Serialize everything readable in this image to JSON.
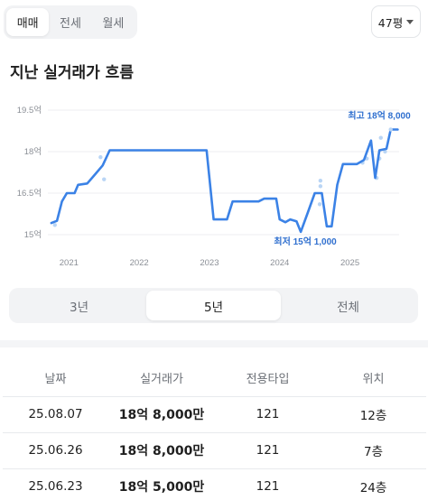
{
  "top_tabs": [
    {
      "label": "매매",
      "active": true
    },
    {
      "label": "전세",
      "active": false
    },
    {
      "label": "월세",
      "active": false
    }
  ],
  "size_select": {
    "label": "47평"
  },
  "section_title": "지난 실거래가 흐름",
  "chart_data": {
    "type": "line",
    "y_ticks": [
      {
        "value": 19.5,
        "label": "19.5억"
      },
      {
        "value": 18,
        "label": "18억"
      },
      {
        "value": 16.5,
        "label": "16.5억"
      },
      {
        "value": 15,
        "label": "15억"
      }
    ],
    "x_ticks": [
      {
        "value": 2021,
        "label": "2021"
      },
      {
        "value": 2022,
        "label": "2022"
      },
      {
        "value": 2023,
        "label": "2023"
      },
      {
        "value": 2024,
        "label": "2024"
      },
      {
        "value": 2025,
        "label": "2025"
      }
    ],
    "ylim": [
      15,
      19.5
    ],
    "xlim": [
      2020.7,
      2025.7
    ],
    "grid": true,
    "line_color": "#3b82e6",
    "point_color": "#b9d5f5",
    "series": [
      {
        "values": [
          [
            2020.75,
            15.42
          ],
          [
            2020.83,
            15.5
          ],
          [
            2020.9,
            16.2
          ],
          [
            2020.97,
            16.5
          ],
          [
            2021.08,
            16.5
          ],
          [
            2021.13,
            16.8
          ],
          [
            2021.26,
            16.85
          ],
          [
            2021.38,
            17.2
          ],
          [
            2021.48,
            17.5
          ],
          [
            2021.58,
            18.05
          ],
          [
            2022.5,
            18.05
          ],
          [
            2022.96,
            18.05
          ],
          [
            2023.06,
            15.55
          ],
          [
            2023.25,
            15.55
          ],
          [
            2023.33,
            16.2
          ],
          [
            2023.7,
            16.2
          ],
          [
            2023.78,
            16.3
          ],
          [
            2023.95,
            16.3
          ],
          [
            2024.0,
            15.55
          ],
          [
            2024.08,
            15.45
          ],
          [
            2024.15,
            15.55
          ],
          [
            2024.24,
            15.48
          ],
          [
            2024.3,
            15.1
          ],
          [
            2024.4,
            15.8
          ],
          [
            2024.5,
            16.5
          ],
          [
            2024.6,
            16.5
          ],
          [
            2024.67,
            15.3
          ],
          [
            2024.74,
            15.3
          ],
          [
            2024.82,
            16.8
          ],
          [
            2024.9,
            17.55
          ],
          [
            2025.1,
            17.55
          ],
          [
            2025.2,
            17.7
          ],
          [
            2025.3,
            18.4
          ],
          [
            2025.36,
            17.05
          ],
          [
            2025.42,
            18.05
          ],
          [
            2025.52,
            18.1
          ],
          [
            2025.58,
            18.8
          ],
          [
            2025.68,
            18.8
          ]
        ]
      }
    ],
    "scatter": [
      [
        2020.8,
        15.35
      ],
      [
        2021.45,
        17.8
      ],
      [
        2021.5,
        17.0
      ],
      [
        2024.58,
        16.95
      ],
      [
        2024.57,
        16.1
      ],
      [
        2024.58,
        16.75
      ],
      [
        2025.18,
        17.6
      ],
      [
        2025.24,
        17.75
      ],
      [
        2025.38,
        17.05
      ],
      [
        2025.42,
        17.75
      ],
      [
        2025.44,
        18.5
      ],
      [
        2025.5,
        18.0
      ]
    ],
    "annotations": [
      {
        "label": "최고 18억 8,000",
        "x": 2025.58,
        "y": 18.8,
        "position": "above-left"
      },
      {
        "label": "최저 15억 1,000",
        "x": 2024.3,
        "y": 15.1,
        "position": "below"
      }
    ]
  },
  "period_tabs": [
    {
      "label": "3년",
      "active": false
    },
    {
      "label": "5년",
      "active": true
    },
    {
      "label": "전체",
      "active": false
    }
  ],
  "table": {
    "headers": [
      "날짜",
      "실거래가",
      "전용타입",
      "위치"
    ],
    "rows": [
      {
        "date": "25.08.07",
        "price": "18억 8,000만",
        "type": "121",
        "floor": "12층"
      },
      {
        "date": "25.06.26",
        "price": "18억 8,000만",
        "type": "121",
        "floor": "7층"
      },
      {
        "date": "25.06.23",
        "price": "18억 5,000만",
        "type": "121",
        "floor": "24층"
      }
    ]
  }
}
